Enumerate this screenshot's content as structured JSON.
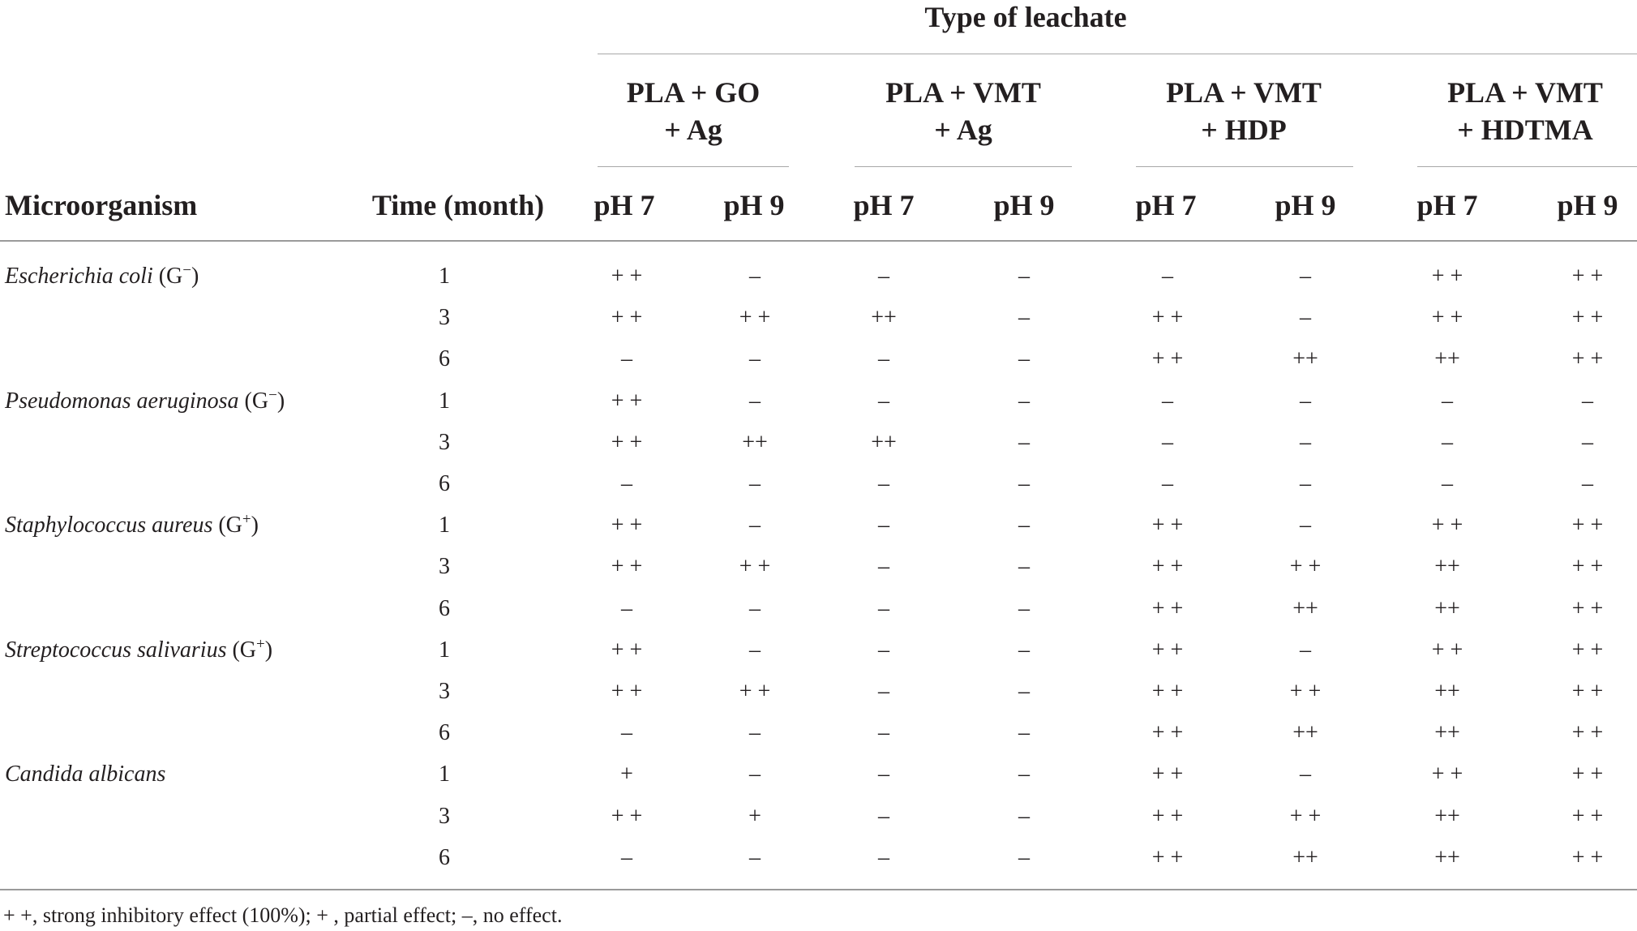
{
  "table": {
    "group_header": "Type of leachate",
    "leachate_types": [
      {
        "line1": "PLA + GO",
        "line2": "+ Ag"
      },
      {
        "line1": "PLA + VMT",
        "line2": "+ Ag"
      },
      {
        "line1": "PLA + VMT",
        "line2": "+ HDP"
      },
      {
        "line1": "PLA + VMT",
        "line2": "+ HDTMA"
      }
    ],
    "col_microorganism": "Microorganism",
    "col_time": "Time (month)",
    "ph_labels": [
      "pH 7",
      "pH 9",
      "pH 7",
      "pH 9",
      "pH 7",
      "pH 9",
      "pH 7",
      "pH 9"
    ],
    "organisms": [
      {
        "name": "Escherichia coli",
        "gram": "(G",
        "gram_sup": "−",
        "gram_close": ")",
        "rows": [
          {
            "time": "1",
            "values": [
              "+ +",
              "–",
              "–",
              "–",
              "–",
              "–",
              "+ +",
              "+ +"
            ]
          },
          {
            "time": "3",
            "values": [
              "+ +",
              "+ +",
              "++",
              "–",
              "+ +",
              "–",
              "+ +",
              "+ +"
            ]
          },
          {
            "time": "6",
            "values": [
              "–",
              "–",
              "–",
              "–",
              "+ +",
              "++",
              "++",
              "+ +"
            ]
          }
        ]
      },
      {
        "name": "Pseudomonas aeruginosa",
        "gram": "(G",
        "gram_sup": "−",
        "gram_close": ")",
        "rows": [
          {
            "time": "1",
            "values": [
              "+ +",
              "–",
              "–",
              "–",
              "–",
              "–",
              "–",
              "–"
            ]
          },
          {
            "time": "3",
            "values": [
              "+ +",
              "++",
              "++",
              "–",
              "–",
              "–",
              "–",
              "–"
            ]
          },
          {
            "time": "6",
            "values": [
              "–",
              "–",
              "–",
              "–",
              "–",
              "–",
              "–",
              "–"
            ]
          }
        ]
      },
      {
        "name": "Staphylococcus aureus",
        "gram": "(G",
        "gram_sup": "+",
        "gram_close": ")",
        "rows": [
          {
            "time": "1",
            "values": [
              "+ +",
              "–",
              "–",
              "–",
              "+ +",
              "–",
              "+ +",
              "+ +"
            ]
          },
          {
            "time": "3",
            "values": [
              "+ +",
              "+ +",
              "–",
              "–",
              "+ +",
              "+ +",
              "++",
              "+ +"
            ]
          },
          {
            "time": "6",
            "values": [
              "–",
              "–",
              "–",
              "–",
              "+ +",
              "++",
              "++",
              "+ +"
            ]
          }
        ]
      },
      {
        "name": "Streptococcus salivarius",
        "gram": "(G",
        "gram_sup": "+",
        "gram_close": ")",
        "rows": [
          {
            "time": "1",
            "values": [
              "+ +",
              "–",
              "–",
              "–",
              "+ +",
              "–",
              "+ +",
              "+ +"
            ]
          },
          {
            "time": "3",
            "values": [
              "+ +",
              "+ +",
              "–",
              "–",
              "+ +",
              "+ +",
              "++",
              "+ +"
            ]
          },
          {
            "time": "6",
            "values": [
              "–",
              "–",
              "–",
              "–",
              "+ +",
              "++",
              "++",
              "+ +"
            ]
          }
        ]
      },
      {
        "name": "Candida albicans",
        "gram": "",
        "gram_sup": "",
        "gram_close": "",
        "rows": [
          {
            "time": "1",
            "values": [
              "+",
              "–",
              "–",
              "–",
              "+ +",
              "–",
              "+ +",
              "+ +"
            ]
          },
          {
            "time": "3",
            "values": [
              "+ +",
              "+",
              "–",
              "–",
              "+ +",
              "+ +",
              "++",
              "+ +"
            ]
          },
          {
            "time": "6",
            "values": [
              "–",
              "–",
              "–",
              "–",
              "+ +",
              "++",
              "++",
              "+ +"
            ]
          }
        ]
      }
    ],
    "footnote": "+ +, strong inhibitory effect (100%); + , partial effect; –, no effect."
  }
}
